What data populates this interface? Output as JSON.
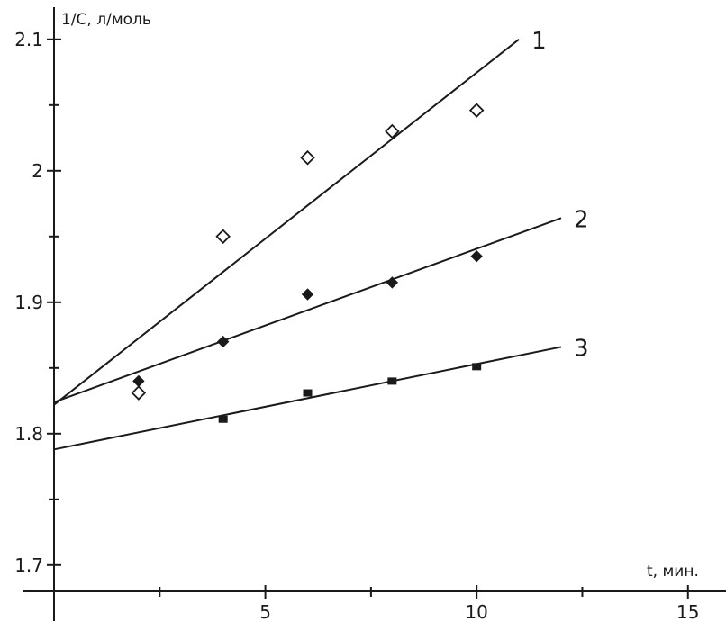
{
  "chart_data": {
    "type": "scatter",
    "title": "",
    "xlabel": "t, мин.",
    "ylabel": "1/C, л/моль",
    "xlim": [
      0,
      15.9
    ],
    "ylim": [
      1.68,
      2.13
    ],
    "x_ticks": [
      5,
      10,
      15
    ],
    "x_minor_ticks": [
      2.5,
      7.5,
      12.5
    ],
    "y_ticks": [
      1.7,
      1.8,
      1.9,
      2.0,
      2.1
    ],
    "y_tick_labels": [
      "1.7",
      "1.8",
      "1.9",
      "2",
      "2.1"
    ],
    "y_minor_ticks": [
      1.75,
      1.85,
      1.95,
      2.05
    ],
    "grid": false,
    "legend": "none",
    "series": [
      {
        "name": "1",
        "marker": "open-diamond",
        "color": "#1a1a1a",
        "points": [
          [
            2,
            1.831
          ],
          [
            4,
            1.95
          ],
          [
            6,
            2.01
          ],
          [
            8,
            2.03
          ],
          [
            10,
            2.046
          ]
        ],
        "fit": {
          "x": [
            0,
            11
          ],
          "y": [
            1.822,
            2.1
          ]
        }
      },
      {
        "name": "2",
        "marker": "filled-diamond",
        "color": "#1a1a1a",
        "points": [
          [
            2,
            1.84
          ],
          [
            4,
            1.87
          ],
          [
            6,
            1.906
          ],
          [
            8,
            1.915
          ],
          [
            10,
            1.935
          ]
        ],
        "fit": {
          "x": [
            0,
            12
          ],
          "y": [
            1.824,
            1.964
          ]
        }
      },
      {
        "name": "3",
        "marker": "filled-square",
        "color": "#1a1a1a",
        "points": [
          [
            4,
            1.811
          ],
          [
            6,
            1.831
          ],
          [
            8,
            1.84
          ],
          [
            10,
            1.851
          ]
        ],
        "fit": {
          "x": [
            0,
            12
          ],
          "y": [
            1.788,
            1.866
          ]
        }
      }
    ]
  }
}
